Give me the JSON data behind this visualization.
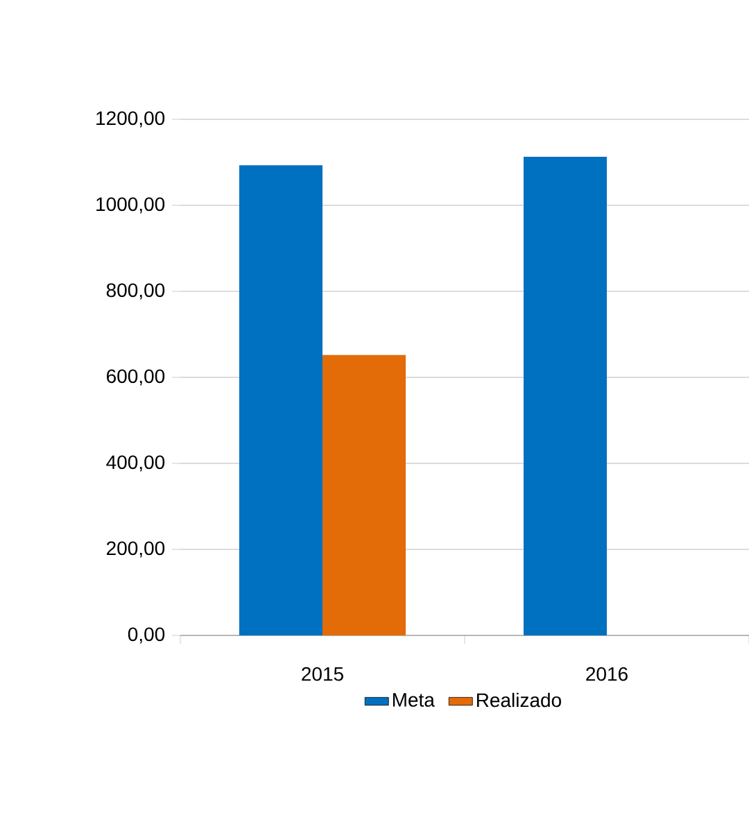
{
  "chart_data": {
    "type": "bar",
    "categories": [
      "2015",
      "2016"
    ],
    "series": [
      {
        "name": "Meta",
        "color": "#0070c0",
        "values": [
          1093,
          1113
        ]
      },
      {
        "name": "Realizado",
        "color": "#e36c09",
        "values": [
          652,
          null
        ]
      }
    ],
    "ylim": [
      0,
      1200
    ],
    "yticks": [
      {
        "value": 0,
        "label": "0,00"
      },
      {
        "value": 200,
        "label": "200,00"
      },
      {
        "value": 400,
        "label": "400,00"
      },
      {
        "value": 600,
        "label": "600,00"
      },
      {
        "value": 800,
        "label": "800,00"
      },
      {
        "value": 1000,
        "label": "1000,00"
      },
      {
        "value": 1200,
        "label": "1200,00"
      }
    ],
    "grid": "y",
    "legend": "bottom"
  }
}
